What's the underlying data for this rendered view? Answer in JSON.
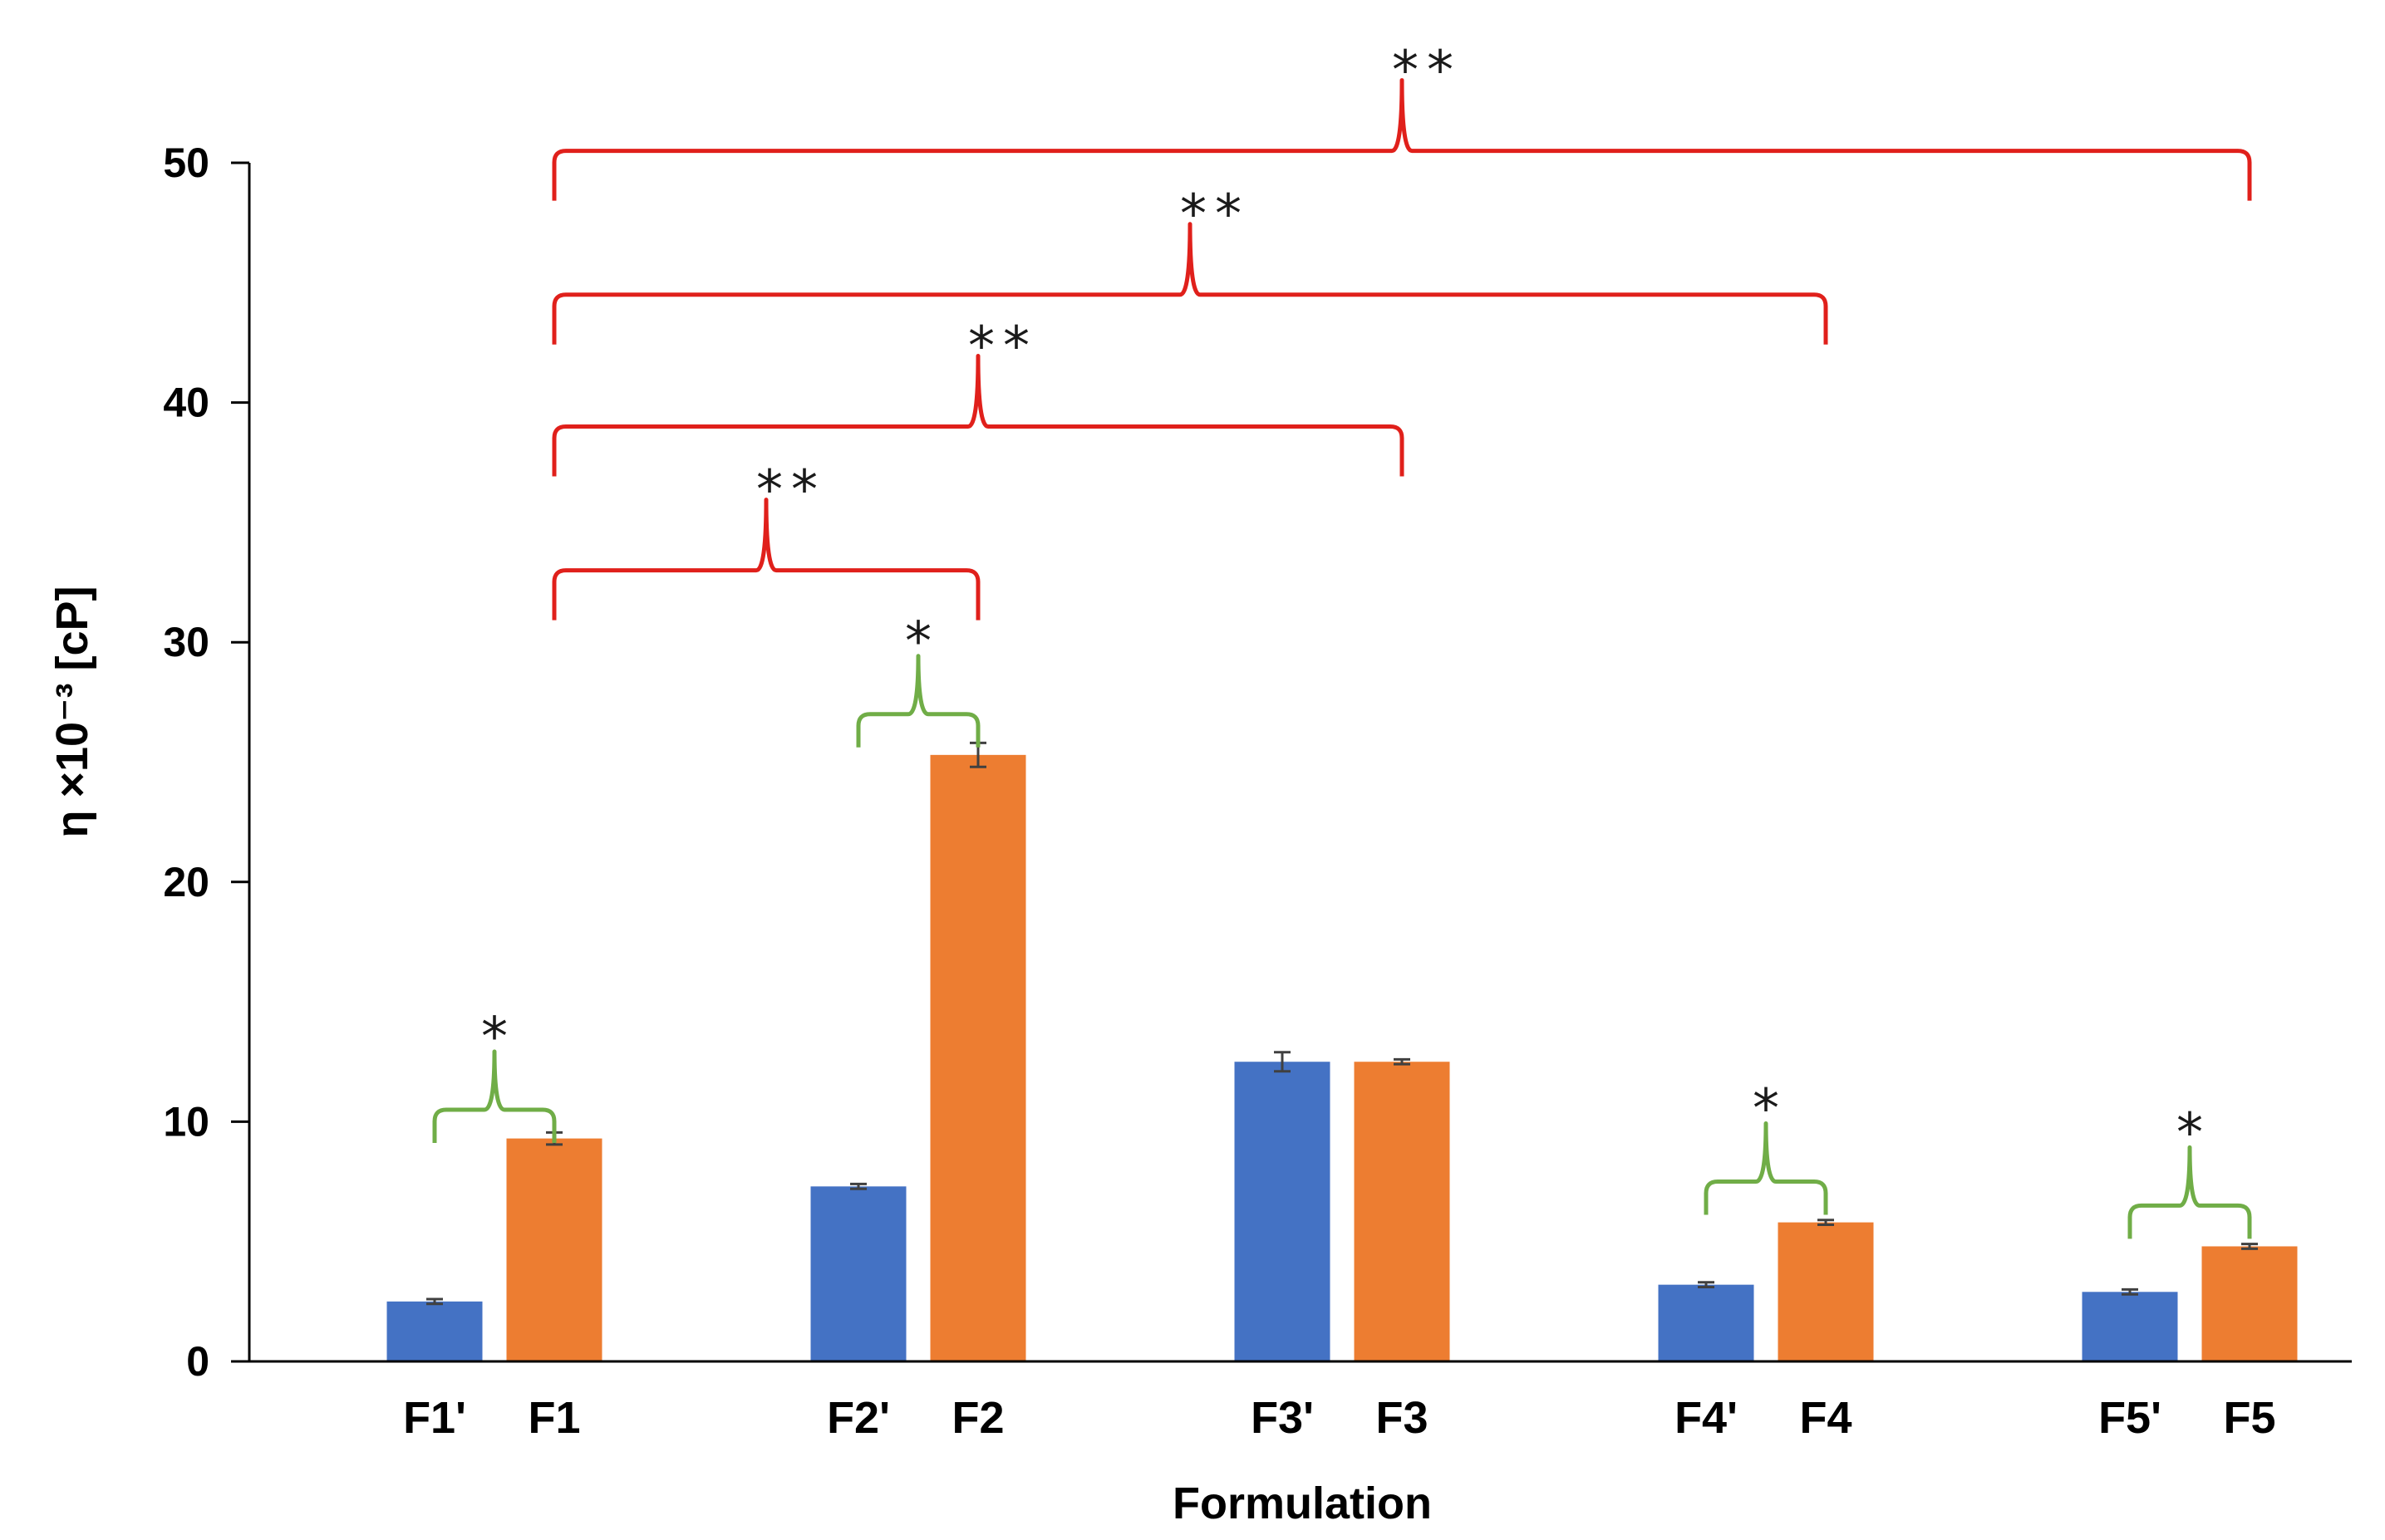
{
  "chart_data": {
    "type": "bar",
    "title": "",
    "xlabel": "Formulation",
    "ylabel": "η ×10⁻³ [cP]",
    "ylim": [
      0,
      50
    ],
    "yticks": [
      0,
      10,
      20,
      30,
      40,
      50
    ],
    "grid": false,
    "legend": "none",
    "colors": {
      "primed": "#4472C4",
      "unprimed": "#ED7D31",
      "sig_single": "#70AD47",
      "sig_double": "#E0201B",
      "error_bar": "#404040"
    },
    "bars": [
      {
        "label": "F1'",
        "group": 0,
        "series": "primed",
        "value": 2.5,
        "error": 0.1
      },
      {
        "label": "F1",
        "group": 0,
        "series": "unprimed",
        "value": 9.3,
        "error": 0.25
      },
      {
        "label": "F2'",
        "group": 1,
        "series": "primed",
        "value": 7.3,
        "error": 0.1
      },
      {
        "label": "F2",
        "group": 1,
        "series": "unprimed",
        "value": 25.3,
        "error": 0.5
      },
      {
        "label": "F3'",
        "group": 2,
        "series": "primed",
        "value": 12.5,
        "error": 0.4
      },
      {
        "label": "F3",
        "group": 2,
        "series": "unprimed",
        "value": 12.5,
        "error": 0.1
      },
      {
        "label": "F4'",
        "group": 3,
        "series": "primed",
        "value": 3.2,
        "error": 0.1
      },
      {
        "label": "F4",
        "group": 3,
        "series": "unprimed",
        "value": 5.8,
        "error": 0.1
      },
      {
        "label": "F5'",
        "group": 4,
        "series": "primed",
        "value": 2.9,
        "error": 0.1
      },
      {
        "label": "F5",
        "group": 4,
        "series": "unprimed",
        "value": 4.8,
        "error": 0.1
      }
    ],
    "significance": [
      {
        "from": "F1'",
        "to": "F1",
        "level": 10.5,
        "label": "*",
        "kind": "single"
      },
      {
        "from": "F2'",
        "to": "F2",
        "level": 27,
        "label": "*",
        "kind": "single"
      },
      {
        "from": "F4'",
        "to": "F4",
        "level": 7.5,
        "label": "*",
        "kind": "single"
      },
      {
        "from": "F5'",
        "to": "F5",
        "level": 6.5,
        "label": "*",
        "kind": "single"
      },
      {
        "from": "F1",
        "to": "F2",
        "level": 33,
        "label": "**",
        "kind": "double"
      },
      {
        "from": "F1",
        "to": "F3",
        "level": 39,
        "label": "**",
        "kind": "double"
      },
      {
        "from": "F1",
        "to": "F4",
        "level": 44.5,
        "label": "**",
        "kind": "double"
      },
      {
        "from": "F1",
        "to": "F5",
        "level": 50.5,
        "label": "**",
        "kind": "double"
      }
    ]
  }
}
